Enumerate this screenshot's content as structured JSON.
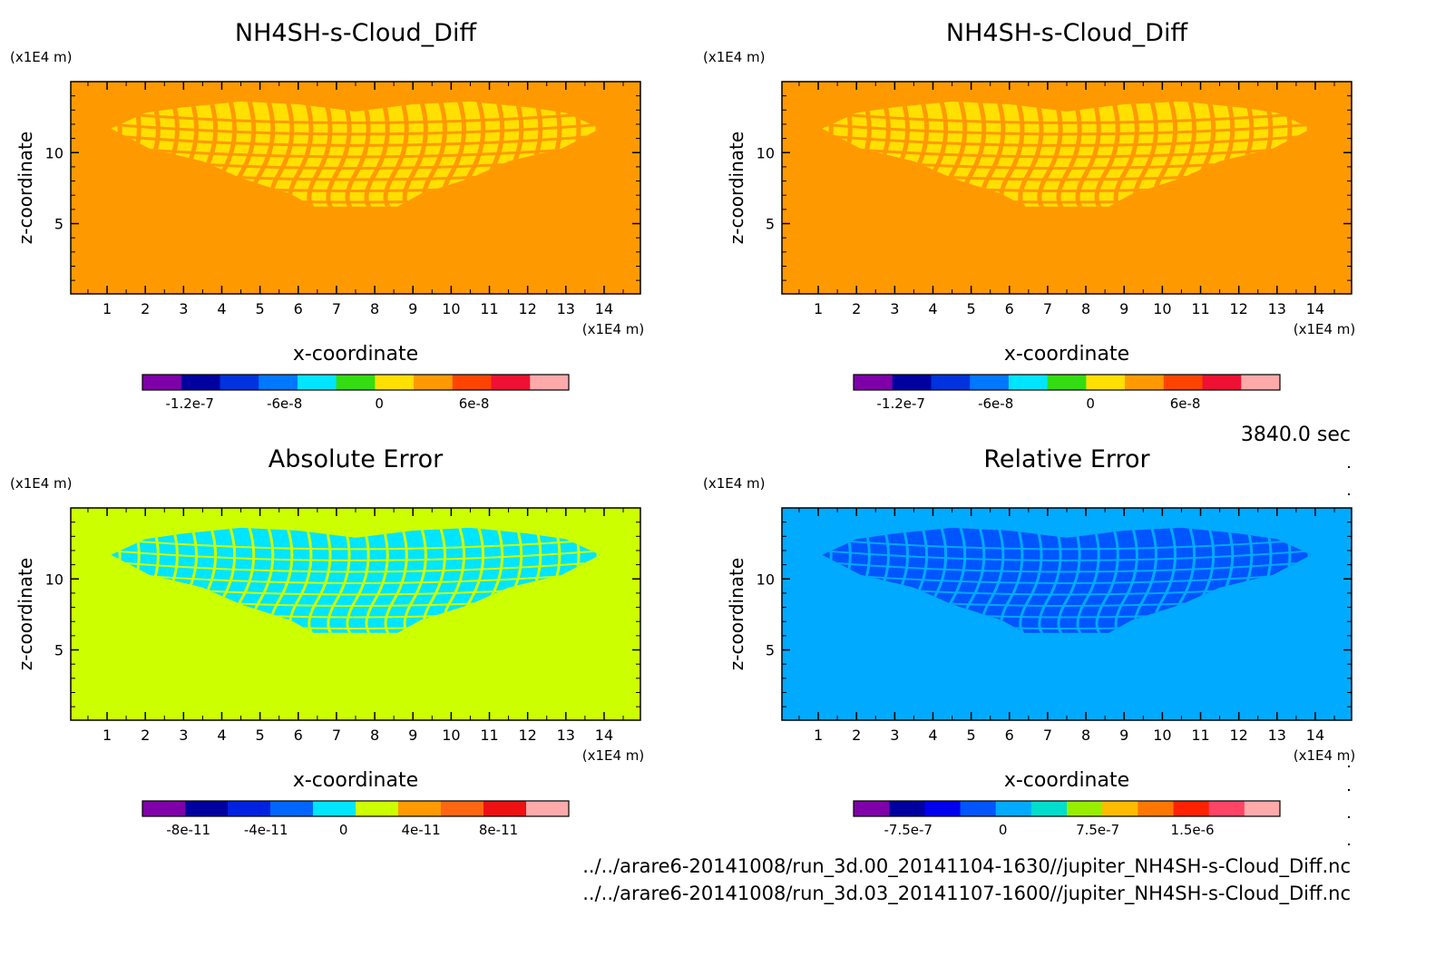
{
  "time_label": "3840.0 sec",
  "file_paths": [
    "../../arare6-20141008/run_3d.00_20141104-1630//jupiter_NH4SH-s-Cloud_Diff.nc",
    "../../arare6-20141008/run_3d.03_20141107-1600//jupiter_NH4SH-s-Cloud_Diff.nc"
  ],
  "colors": {
    "scale_a": [
      "#7f00a8",
      "#0000a0",
      "#0033dd",
      "#0077ff",
      "#00e5ff",
      "#33dd11",
      "#ffe000",
      "#ff9900",
      "#ff4400",
      "#ee1133",
      "#ffaaaa"
    ],
    "scale_b": [
      "#7f00a8",
      "#0000a0",
      "#0022e0",
      "#0066ff",
      "#00e5ff",
      "#ccff00",
      "#ff9900",
      "#ff6611",
      "#ee1111",
      "#ffaaaa"
    ],
    "scale_c": [
      "#7f00a8",
      "#0000a0",
      "#0000ee",
      "#0055ff",
      "#00aaff",
      "#00ddcc",
      "#99ee00",
      "#ffbb00",
      "#ff7700",
      "#ff2200",
      "#ff4466",
      "#ffaaaa"
    ]
  },
  "chart_data": [
    {
      "type": "heatmap",
      "title": "NH4SH-s-Cloud_Diff",
      "xlabel": "x-coordinate",
      "ylabel": "z-coordinate",
      "x_unit": "(x1E4 m)",
      "y_unit": "(x1E4 m)",
      "xlim": [
        0.05,
        14.95
      ],
      "ylim": [
        0.05,
        15.0
      ],
      "xticks": [
        "1",
        "2",
        "3",
        "4",
        "5",
        "6",
        "7",
        "8",
        "9",
        "10",
        "11",
        "12",
        "13",
        "14"
      ],
      "yticks": [
        "5",
        "10"
      ],
      "background_color": "#ff9900",
      "cloud_colors": [
        "#ffe000",
        "#ff9900"
      ],
      "colorbar": {
        "colors": "scale_a",
        "labels": [
          "-1.2e-7",
          "-6e-8",
          "0",
          "6e-8"
        ]
      }
    },
    {
      "type": "heatmap",
      "title": "NH4SH-s-Cloud_Diff",
      "xlabel": "x-coordinate",
      "ylabel": "z-coordinate",
      "x_unit": "(x1E4 m)",
      "y_unit": "(x1E4 m)",
      "xlim": [
        0.05,
        14.95
      ],
      "ylim": [
        0.05,
        15.0
      ],
      "xticks": [
        "1",
        "2",
        "3",
        "4",
        "5",
        "6",
        "7",
        "8",
        "9",
        "10",
        "11",
        "12",
        "13",
        "14"
      ],
      "yticks": [
        "5",
        "10"
      ],
      "background_color": "#ff9900",
      "cloud_colors": [
        "#ffe000",
        "#ff9900"
      ],
      "colorbar": {
        "colors": "scale_a",
        "labels": [
          "-1.2e-7",
          "-6e-8",
          "0",
          "6e-8"
        ]
      }
    },
    {
      "type": "heatmap",
      "title": "Absolute Error",
      "xlabel": "x-coordinate",
      "ylabel": "z-coordinate",
      "x_unit": "(x1E4 m)",
      "y_unit": "(x1E4 m)",
      "xlim": [
        0.05,
        14.95
      ],
      "ylim": [
        0.05,
        15.0
      ],
      "xticks": [
        "1",
        "2",
        "3",
        "4",
        "5",
        "6",
        "7",
        "8",
        "9",
        "10",
        "11",
        "12",
        "13",
        "14"
      ],
      "yticks": [
        "5",
        "10"
      ],
      "background_color": "#ccff00",
      "cloud_colors": [
        "#00e5ff",
        "#ccff00"
      ],
      "colorbar": {
        "colors": "scale_b",
        "labels": [
          "-8e-11",
          "-4e-11",
          "0",
          "4e-11",
          "8e-11"
        ]
      }
    },
    {
      "type": "heatmap",
      "title": "Relative Error",
      "xlabel": "x-coordinate",
      "ylabel": "z-coordinate",
      "x_unit": "(x1E4 m)",
      "y_unit": "(x1E4 m)",
      "xlim": [
        0.05,
        14.95
      ],
      "ylim": [
        0.05,
        15.0
      ],
      "xticks": [
        "1",
        "2",
        "3",
        "4",
        "5",
        "6",
        "7",
        "8",
        "9",
        "10",
        "11",
        "12",
        "13",
        "14"
      ],
      "yticks": [
        "5",
        "10"
      ],
      "background_color": "#00aaff",
      "cloud_colors": [
        "#0055ff",
        "#00aaff"
      ],
      "colorbar": {
        "colors": "scale_c",
        "labels": [
          "-7.5e-7",
          "0",
          "7.5e-7",
          "1.5e-6"
        ]
      }
    }
  ]
}
